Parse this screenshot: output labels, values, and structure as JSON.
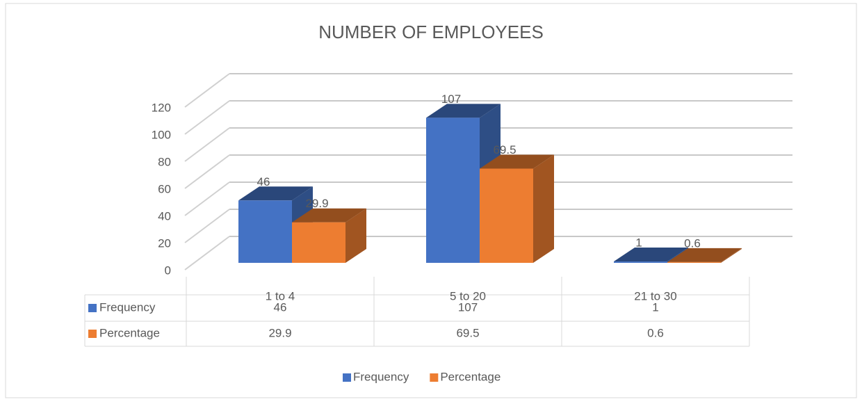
{
  "chart_data": {
    "type": "bar3d",
    "title": "NUMBER OF EMPLOYEES",
    "categories": [
      "1 to 4",
      "5 to 20",
      "21 to 30"
    ],
    "series": [
      {
        "name": "Frequency",
        "color": "#4472c4",
        "values": [
          46,
          107,
          1
        ]
      },
      {
        "name": "Percentage",
        "color": "#ed7d31",
        "values": [
          29.9,
          69.5,
          0.6
        ]
      }
    ],
    "ylim": [
      0,
      120
    ],
    "yticks": [
      0,
      20,
      40,
      60,
      80,
      100,
      120
    ],
    "grid": true,
    "data_table": true,
    "legend": "bottom"
  }
}
